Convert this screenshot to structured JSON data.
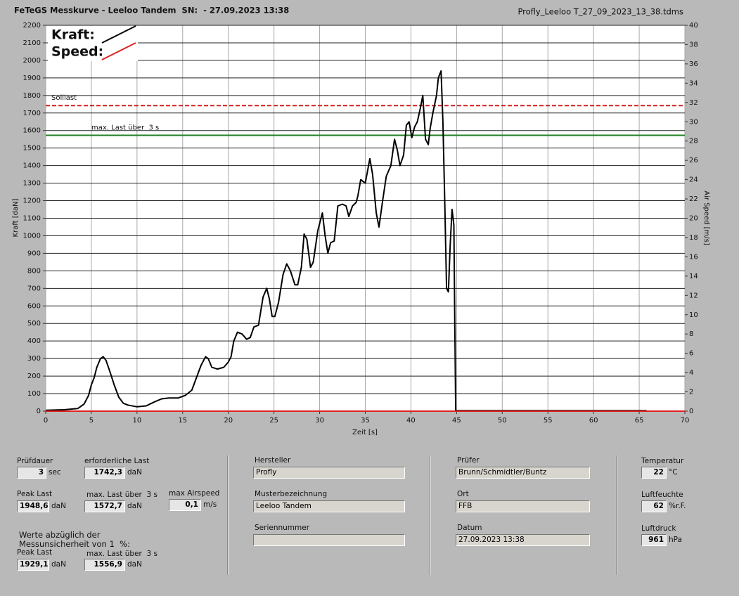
{
  "header": {
    "title": "FeTeGS Messkurve - Leeloo Tandem  SN:  - 27.09.2023 13:38",
    "file": "Profly_Leeloo T_27_09_2023_13_38.tdms"
  },
  "chart_data": {
    "type": "line",
    "xlabel": "Zeit [s]",
    "ylabel": "Kraft [daN]",
    "y2label": "Air Speed [m/s]",
    "xlim": [
      0,
      70
    ],
    "xticks": [
      0,
      5,
      10,
      15,
      20,
      25,
      30,
      35,
      40,
      45,
      50,
      55,
      60,
      65,
      70
    ],
    "ylim": [
      0,
      2200
    ],
    "yticks": [
      0,
      100,
      200,
      300,
      400,
      500,
      600,
      700,
      800,
      900,
      1000,
      1100,
      1200,
      1300,
      1400,
      1500,
      1600,
      1700,
      1800,
      1900,
      2000,
      2100,
      2200
    ],
    "y2lim": [
      0,
      40
    ],
    "y2ticks": [
      0,
      2,
      4,
      6,
      8,
      10,
      12,
      14,
      16,
      18,
      20,
      22,
      24,
      26,
      28,
      30,
      32,
      34,
      36,
      38,
      40
    ],
    "grid": true,
    "series": [
      {
        "name": "Kraft:",
        "color": "#000000",
        "x": [
          0,
          2,
          3.5,
          4.2,
          4.7,
          5.0,
          5.3,
          5.6,
          6.0,
          6.3,
          6.6,
          7.0,
          7.5,
          8.0,
          8.5,
          9.0,
          10,
          11,
          12,
          12.7,
          13.5,
          14.5,
          15.3,
          16,
          16.5,
          17,
          17.5,
          17.8,
          18.2,
          18.8,
          19.5,
          20,
          20.3,
          20.6,
          21,
          21.5,
          22,
          22.4,
          22.8,
          23.3,
          23.8,
          24.2,
          24.5,
          24.8,
          25.1,
          25.5,
          26.0,
          26.4,
          26.8,
          27.3,
          27.6,
          28,
          28.3,
          28.6,
          29.0,
          29.3,
          29.8,
          30.3,
          30.6,
          30.9,
          31.2,
          31.6,
          32.0,
          32.5,
          32.9,
          33.2,
          33.6,
          34.0,
          34.2,
          34.5,
          35.0,
          35.5,
          35.8,
          36.2,
          36.5,
          36.9,
          37.3,
          37.8,
          38.2,
          38.5,
          38.8,
          39.2,
          39.5,
          39.8,
          40.1,
          40.4,
          40.7,
          41.0,
          41.3,
          41.6,
          41.9,
          42.1,
          42.4,
          42.8,
          43.0,
          43.3,
          43.5,
          43.7,
          43.9,
          44.1,
          44.3,
          44.5,
          44.7,
          44.8,
          44.9,
          45,
          65.8
        ],
        "values": [
          5,
          8,
          15,
          40,
          90,
          150,
          190,
          250,
          300,
          310,
          290,
          230,
          150,
          80,
          45,
          35,
          25,
          30,
          55,
          70,
          75,
          75,
          90,
          120,
          190,
          260,
          310,
          300,
          250,
          240,
          250,
          280,
          310,
          400,
          450,
          440,
          410,
          420,
          480,
          490,
          650,
          700,
          640,
          540,
          540,
          620,
          780,
          840,
          800,
          720,
          720,
          820,
          1010,
          980,
          820,
          850,
          1030,
          1130,
          1000,
          900,
          960,
          970,
          1170,
          1180,
          1170,
          1110,
          1170,
          1190,
          1230,
          1320,
          1300,
          1440,
          1350,
          1130,
          1050,
          1200,
          1340,
          1400,
          1550,
          1490,
          1400,
          1460,
          1630,
          1650,
          1560,
          1620,
          1650,
          1720,
          1800,
          1550,
          1520,
          1610,
          1700,
          1800,
          1900,
          1940,
          1650,
          1200,
          700,
          680,
          950,
          1150,
          1060,
          500,
          0,
          3,
          3
        ]
      },
      {
        "name": "Speed:",
        "color": "#e02020",
        "axis": "y2",
        "x": [
          0,
          70
        ],
        "values": [
          0,
          0
        ]
      }
    ],
    "ref_lines": [
      {
        "label": "Solllast",
        "value": 1742.3,
        "color": "#d02020",
        "dash": true
      },
      {
        "label": "max. Last über  3 s",
        "value": 1572.7,
        "color": "#208020",
        "dash": false
      }
    ]
  },
  "panel": {
    "fields": [
      {
        "label": "Prüfdauer",
        "value": "3",
        "unit": "sec"
      },
      {
        "label": "erforderliche Last",
        "value": "1742,3",
        "unit": "daN"
      },
      {
        "label": "Peak Last",
        "value": "1948,6",
        "unit": "daN"
      },
      {
        "label": "max. Last über  3 s",
        "value": "1572,7",
        "unit": "daN"
      },
      {
        "label": "max Airspeed",
        "value": "0,1",
        "unit": "m/s"
      },
      {
        "label": "Peak Last",
        "value": "1929,1",
        "unit": "daN"
      },
      {
        "label": "max. Last über  3 s",
        "value": "1556,9",
        "unit": "daN"
      },
      {
        "label": "Hersteller",
        "value": "Profly"
      },
      {
        "label": "Musterbezeichnung",
        "value": "Leeloo Tandem"
      },
      {
        "label": "Seriennummer"
      },
      {
        "label": "Prüfer",
        "value": "Brunn/Schmidtler/Buntz"
      },
      {
        "label": "Ort",
        "value": "FFB"
      },
      {
        "label": "Datum",
        "value": "27.09.2023 13:38"
      },
      {
        "label": "Temperatur",
        "value": "22",
        "unit": "°C"
      },
      {
        "label": "Luftfeuchte",
        "value": "62",
        "unit": "%r.F."
      },
      {
        "label": "Luftdruck",
        "value": "961",
        "unit": "hPa"
      }
    ],
    "note": [
      "Werte abzüglich der",
      "Messunsicherheit von 1  %:"
    ]
  }
}
